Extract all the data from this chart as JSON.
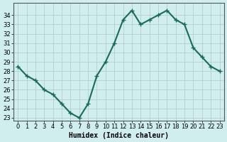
{
  "x": [
    0,
    1,
    2,
    3,
    4,
    5,
    6,
    7,
    8,
    9,
    10,
    11,
    12,
    13,
    14,
    15,
    16,
    17,
    18,
    19,
    20,
    21,
    22,
    23
  ],
  "y": [
    28.5,
    27.5,
    27.0,
    26.0,
    25.5,
    24.5,
    23.5,
    23.0,
    24.5,
    27.5,
    29.0,
    31.0,
    33.5,
    34.5,
    33.0,
    33.5,
    34.0,
    34.5,
    33.5,
    33.0,
    30.5,
    29.5,
    28.5,
    28.0
  ],
  "xlabel": "Humidex (Indice chaleur)",
  "ylim_min": 23,
  "ylim_max": 35,
  "xlim_min": -0.5,
  "xlim_max": 23.5,
  "yticks": [
    23,
    24,
    25,
    26,
    27,
    28,
    29,
    30,
    31,
    32,
    33,
    34
  ],
  "xticks": [
    0,
    1,
    2,
    3,
    4,
    5,
    6,
    7,
    8,
    9,
    10,
    11,
    12,
    13,
    14,
    15,
    16,
    17,
    18,
    19,
    20,
    21,
    22,
    23
  ],
  "line_color": "#1a6b5a",
  "marker": "+",
  "bg_color": "#d0eeee",
  "grid_color": "#b0c8c8",
  "label_color": "#000000",
  "marker_size": 5,
  "line_width": 1.5
}
